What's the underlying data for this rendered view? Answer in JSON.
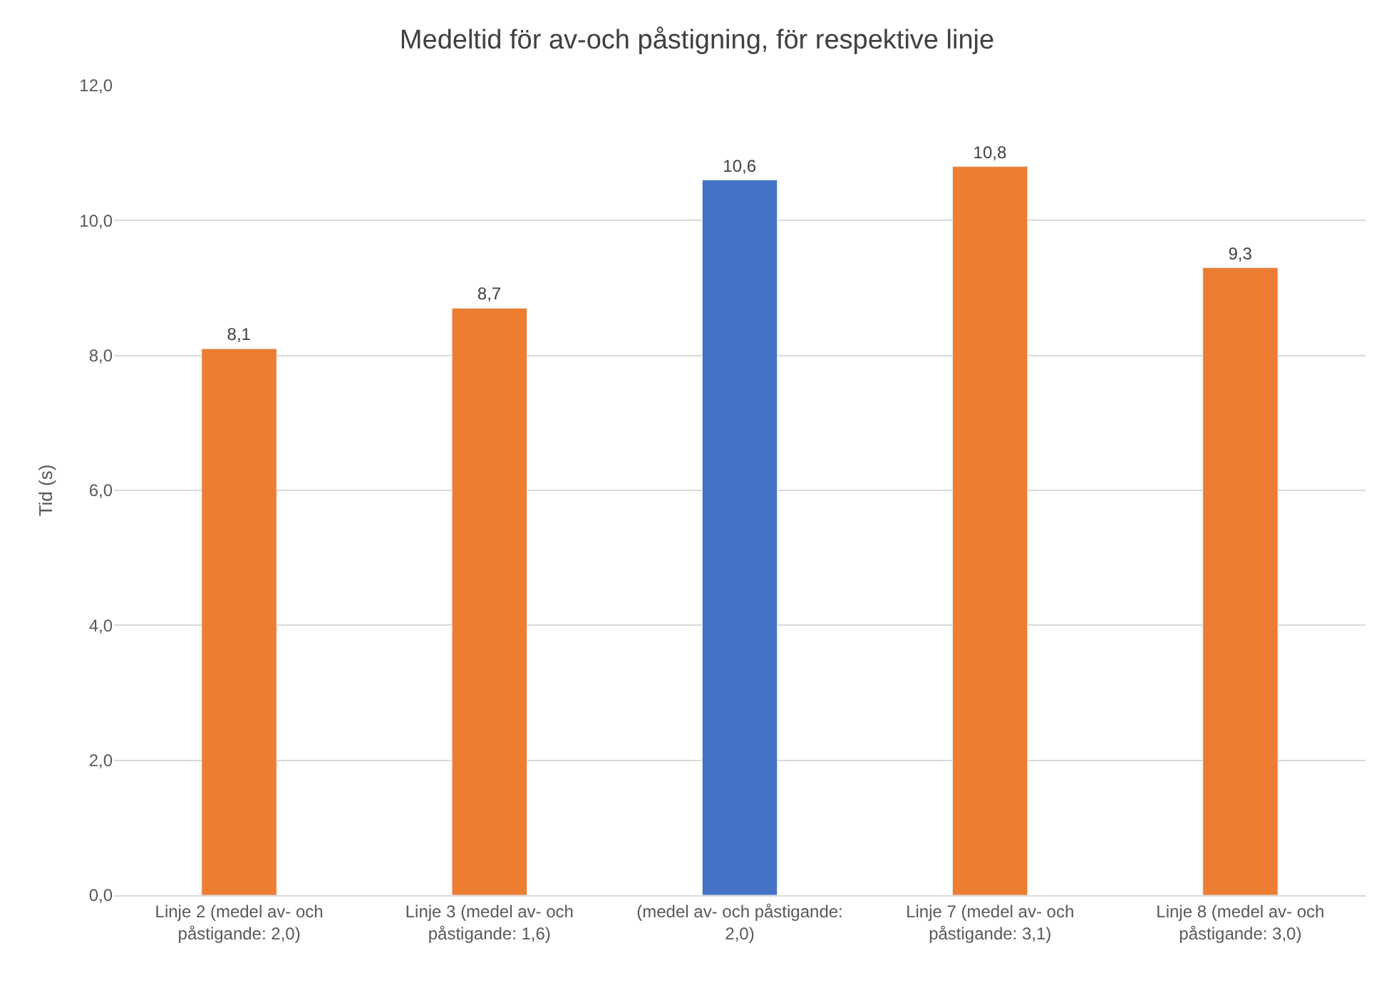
{
  "chart_data": {
    "type": "bar",
    "title": "Medeltid för av-och påstigning, för respektive linje",
    "ylabel": "Tid (s)",
    "categories": [
      "Linje 2 (medel av- och påstigande: 2,0)",
      "Linje 3 (medel av- och påstigande: 1,6)",
      "(medel av- och påstigande: 2,0)",
      "Linje 7 (medel av- och påstigande: 3,1)",
      "Linje 8 (medel av- och påstigande: 3,0)"
    ],
    "values": [
      8.1,
      8.7,
      10.6,
      10.8,
      9.3
    ],
    "colors": [
      "#ed7d31",
      "#ed7d31",
      "#4472c4",
      "#ed7d31",
      "#ed7d31"
    ],
    "value_labels": [
      "8,1",
      "8,7",
      "10,6",
      "10,8",
      "9,3"
    ],
    "ylim": [
      0,
      12
    ],
    "yticks": [
      {
        "value": 0,
        "label": "0,0"
      },
      {
        "value": 2,
        "label": "2,0"
      },
      {
        "value": 4,
        "label": "4,0"
      },
      {
        "value": 6,
        "label": "6,0"
      },
      {
        "value": 8,
        "label": "8,0"
      },
      {
        "value": 10,
        "label": "10,0"
      },
      {
        "value": 12,
        "label": "12,0"
      }
    ],
    "grid": "y",
    "legend": false
  }
}
